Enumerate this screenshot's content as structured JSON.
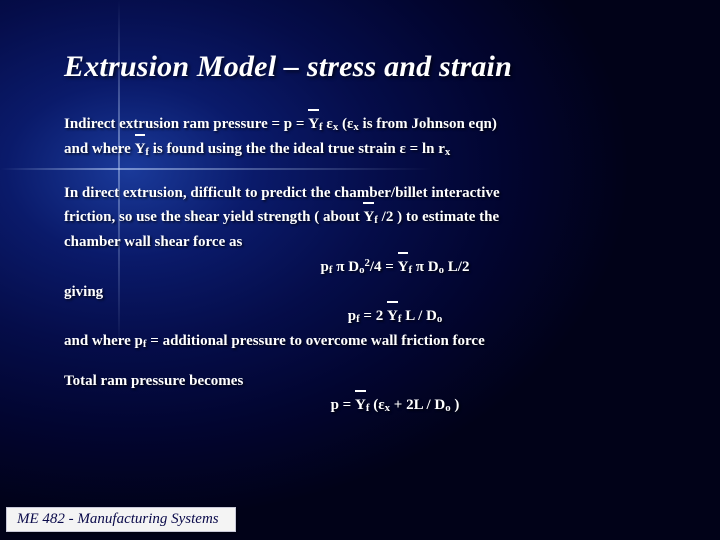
{
  "title": "Extrusion Model – stress and strain",
  "line1a": "Indirect extrusion ram pressure = p = ",
  "line1_y": "Y",
  "line1_ysub": "f",
  "line1b": " ",
  "line1_eps1": "ε",
  "line1_eps1sub": "x",
  "line1c": " (",
  "line1_eps2": "ε",
  "line1_eps2sub": "x",
  "line1d": " is from Johnson eqn)",
  "line2a": "and where ",
  "line2_y": "Y",
  "line2_ysub": "f",
  "line2b": " is found using the the ideal true strain ",
  "line2_eps": "ε",
  "line2c": " = ln r",
  "line2_rsub": "x",
  "line3": "In direct extrusion, difficult to predict the chamber/billet interactive",
  "line4a": "friction, so use the shear yield strength ( about ",
  "line4_y": "Y",
  "line4_ysub": "f",
  "line4b": " /2  ) to estimate the",
  "line5": "chamber wall shear force as",
  "eq1a": "p",
  "eq1_sub1": "f",
  "eq1b": " π D",
  "eq1_sub2": "o",
  "eq1_sup": "2",
  "eq1c": "/4 = ",
  "eq1_y": "Y",
  "eq1_ysub": "f",
  "eq1d": " π D",
  "eq1_sub3": "o",
  "eq1e": " L/2",
  "giving": "giving",
  "eq2a": "p",
  "eq2_sub1": "f",
  "eq2b": " = 2 ",
  "eq2_y": "Y",
  "eq2_ysub": "f",
  "eq2c": " L / D",
  "eq2_sub2": "o",
  "line6a": "and where p",
  "line6_sub": "f",
  "line6b": " = additional pressure to overcome wall friction force",
  "line7": "Total ram pressure becomes",
  "eq3a": "p = ",
  "eq3_y": "Y",
  "eq3_ysub": "f",
  "eq3b": " (",
  "eq3_eps": "ε",
  "eq3_epssub": "x",
  "eq3c": " + 2L / D",
  "eq3_sub": "o",
  "eq3d": " )",
  "footer": "ME 482 - Manufacturing Systems",
  "colors": {
    "text": "#ffffff",
    "bg_center": "#1a3a9a",
    "bg_outer": "#010218",
    "footer_bg": "#f4f4f4",
    "footer_text": "#0a0a4a"
  },
  "fonts": {
    "title_size_pt": 30,
    "body_size_pt": 15,
    "title_italic": true,
    "body_bold": true
  }
}
